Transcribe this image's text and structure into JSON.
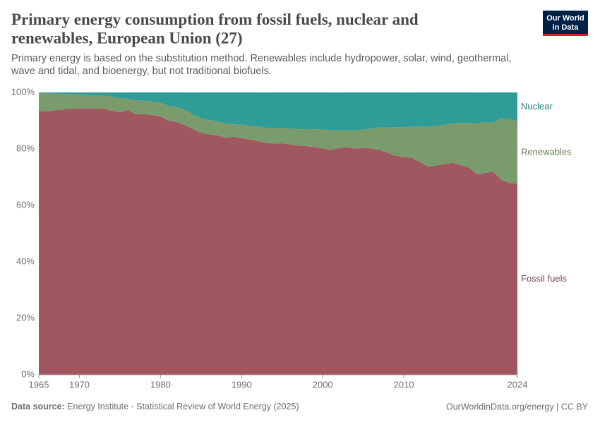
{
  "chart_data": {
    "type": "stacked-area",
    "title": "Primary energy consumption from fossil fuels, nuclear and renewables, European Union (27)",
    "subtitle": "Primary energy is based on the substitution method. Renewables include hydropower, solar, wind, geothermal, wave and tidal, and bioenergy, but not traditional biofuels.",
    "logo": [
      "Our World",
      "in Data"
    ],
    "source_label": "Data source:",
    "source": "Energy Institute - Statistical Review of World Energy (2025)",
    "url": "OurWorldinData.org/energy | CC BY",
    "x": [
      1965,
      1966,
      1967,
      1968,
      1969,
      1970,
      1971,
      1972,
      1973,
      1974,
      1975,
      1976,
      1977,
      1978,
      1979,
      1980,
      1981,
      1982,
      1983,
      1984,
      1985,
      1986,
      1987,
      1988,
      1989,
      1990,
      1991,
      1992,
      1993,
      1994,
      1995,
      1996,
      1997,
      1998,
      1999,
      2000,
      2001,
      2002,
      2003,
      2004,
      2005,
      2006,
      2007,
      2008,
      2009,
      2010,
      2011,
      2012,
      2013,
      2014,
      2015,
      2016,
      2017,
      2018,
      2019,
      2020,
      2021,
      2022,
      2023,
      2024
    ],
    "xlim": [
      1965,
      2024
    ],
    "xticks": [
      1965,
      1970,
      1980,
      1990,
      2000,
      2010,
      2024
    ],
    "ylim": [
      0,
      100
    ],
    "yticks": [
      {
        "value": 0,
        "label": "0%"
      },
      {
        "value": 20,
        "label": "20%"
      },
      {
        "value": 40,
        "label": "40%"
      },
      {
        "value": 60,
        "label": "60%"
      },
      {
        "value": 80,
        "label": "80%"
      },
      {
        "value": 100,
        "label": "100%"
      }
    ],
    "grid": true,
    "series": [
      {
        "name": "Fossil fuels",
        "color": "#a0575f",
        "values": [
          93.5,
          93.3,
          93.7,
          94,
          94.3,
          94.3,
          94.3,
          94.2,
          94.3,
          93.5,
          93,
          93.8,
          92.2,
          92.3,
          92,
          91.5,
          90,
          89.5,
          88.5,
          87,
          85.7,
          85.2,
          84.8,
          83.9,
          84.3,
          83.8,
          83.3,
          82.8,
          82.1,
          81.9,
          82,
          81.6,
          81.2,
          81,
          80.6,
          80.2,
          79.7,
          80.3,
          80.6,
          80.1,
          80.3,
          80.1,
          79.7,
          78.6,
          77.6,
          77.2,
          76.8,
          75.3,
          73.7,
          74.2,
          74.6,
          75.1,
          74.3,
          73.4,
          71,
          71.4,
          72,
          69,
          67.9,
          67.7
        ]
      },
      {
        "name": "Renewables",
        "color": "#7a9b6c",
        "values": [
          6.3,
          6.4,
          5.9,
          5.5,
          5.1,
          5,
          4.8,
          4.7,
          4.5,
          5,
          5,
          3.9,
          5,
          4.7,
          4.8,
          4.9,
          5.2,
          5.3,
          5.3,
          5.2,
          5.1,
          5,
          5,
          5.1,
          4.4,
          4.8,
          4.9,
          5.2,
          5.4,
          5.6,
          5.4,
          5.6,
          5.8,
          6,
          6.4,
          6.6,
          6.9,
          6.2,
          6,
          6.5,
          6.5,
          7.1,
          7.9,
          9,
          10.1,
          10.5,
          11.1,
          12.7,
          14.1,
          14,
          14,
          14,
          14.9,
          15.8,
          18.1,
          18,
          17.3,
          21.8,
          22.7,
          22.1
        ]
      },
      {
        "name": "Nuclear",
        "color": "#2f9c98",
        "values": [
          0.2,
          0.3,
          0.4,
          0.5,
          0.6,
          0.7,
          0.9,
          1.1,
          1.2,
          1.5,
          2,
          2.3,
          2.8,
          3,
          3.2,
          3.6,
          4.8,
          5.2,
          6.2,
          7.8,
          9.2,
          9.8,
          10.2,
          11,
          11.3,
          11.4,
          11.8,
          12,
          12.5,
          12.5,
          12.6,
          12.8,
          13,
          13,
          13,
          13.2,
          13.4,
          13.5,
          13.4,
          13.4,
          13.2,
          12.8,
          12.4,
          12.4,
          12.3,
          12.3,
          12.1,
          12,
          12.2,
          11.8,
          11.4,
          10.9,
          10.8,
          10.8,
          10.9,
          10.6,
          10.7,
          9.2,
          9.4,
          10.2
        ]
      }
    ]
  }
}
